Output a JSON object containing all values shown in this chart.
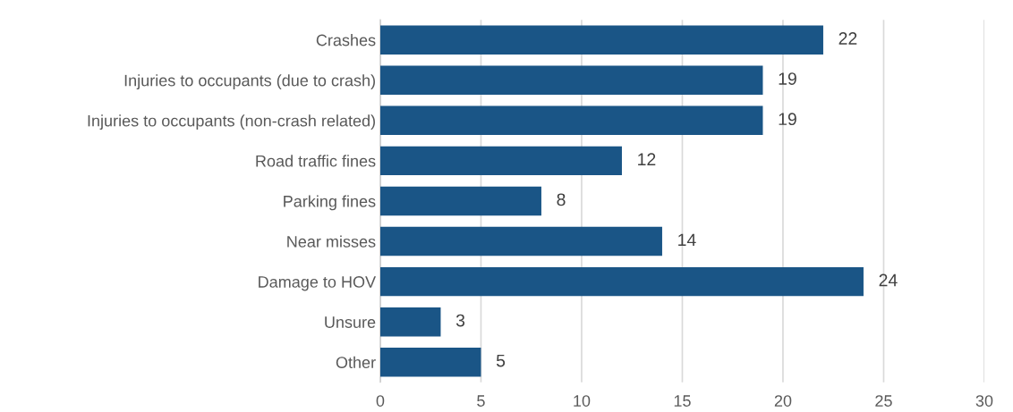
{
  "chart_data": {
    "type": "bar",
    "orientation": "horizontal",
    "categories": [
      "Crashes",
      "Injuries to occupants (due to crash)",
      "Injuries to occupants (non-crash related)",
      "Road traffic fines",
      "Parking fines",
      "Near misses",
      "Damage to HOV",
      "Unsure",
      "Other"
    ],
    "values": [
      22,
      19,
      19,
      12,
      8,
      14,
      24,
      3,
      5
    ],
    "color": "#1a5586",
    "xlim": [
      0,
      30
    ],
    "xticks": [
      0,
      5,
      10,
      15,
      20,
      25,
      30
    ],
    "grid": "x",
    "data_labels": true
  }
}
